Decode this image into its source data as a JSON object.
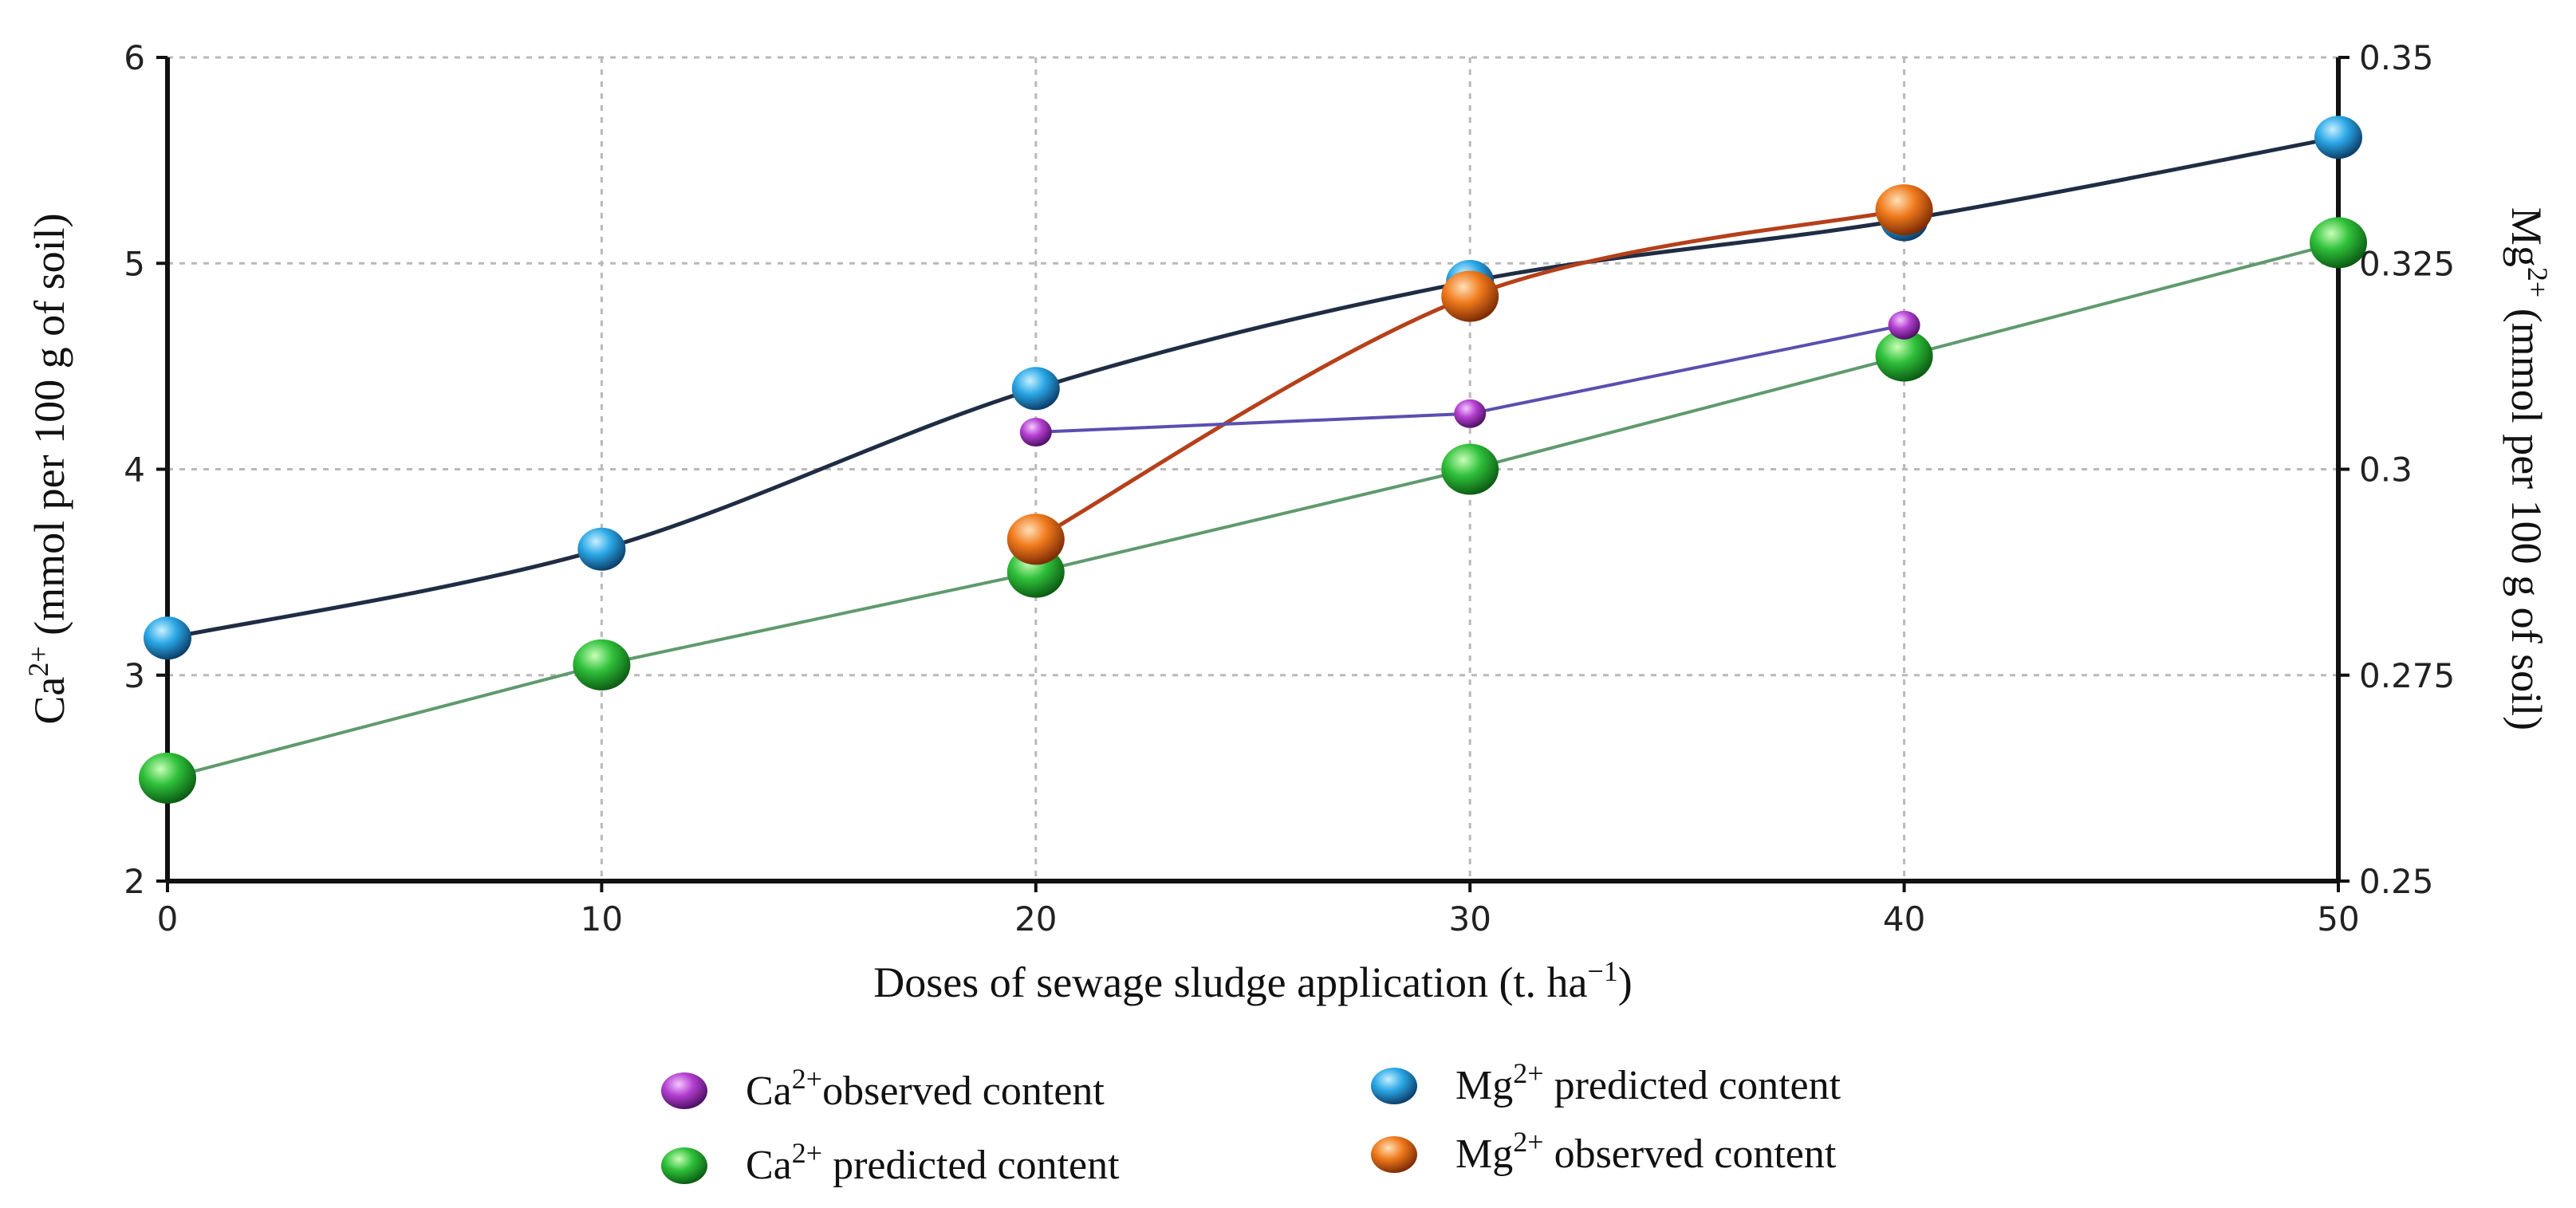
{
  "chart_data": {
    "type": "line",
    "x_axis": {
      "label": "Doses of sewage sludge application (t. ha",
      "label_sup": "−1",
      "label_close": ")",
      "range": [
        0,
        50
      ],
      "ticks": [
        "0",
        "10",
        "20",
        "30",
        "40",
        "50"
      ]
    },
    "y_left": {
      "label_prefix": "Ca",
      "label_sup": "2+",
      "label_suffix": " (mmol per 100 g of soil)",
      "range": [
        2,
        6
      ],
      "ticks": [
        "2",
        "3",
        "4",
        "5",
        "6"
      ]
    },
    "y_right": {
      "label_prefix": "Mg",
      "label_sup": "2+",
      "label_suffix": " (mmol per 100 g of soil)",
      "range": [
        0.25,
        0.35
      ],
      "ticks": [
        "0.25",
        "0.275",
        "0.3",
        "0.325",
        "0.35"
      ]
    },
    "grid": true,
    "series": [
      {
        "name": "Ca2+ observed content",
        "legend_prefix": "Ca",
        "legend_sup": "2+",
        "legend_suffix": "observed content",
        "axis": "left",
        "color": "#b43fd0",
        "line_color": "#5a4fb0",
        "curve": "straight",
        "x": [
          20,
          30,
          40
        ],
        "y": [
          4.18,
          4.27,
          4.7
        ]
      },
      {
        "name": "Ca2+ predicted content",
        "legend_prefix": "Ca",
        "legend_sup": "2+",
        "legend_suffix": " predicted content",
        "axis": "left",
        "color": "#2fc03a",
        "line_color": "#5f9a6d",
        "curve": "straight",
        "x": [
          0,
          10,
          20,
          30,
          40,
          50
        ],
        "y": [
          2.5,
          3.05,
          3.5,
          4.0,
          4.55,
          5.1
        ]
      },
      {
        "name": "Mg2+ predicted content",
        "legend_prefix": "Mg",
        "legend_sup": "2+",
        "legend_suffix": " predicted content",
        "axis": "right",
        "color": "#2aa7e6",
        "line_color": "#1f2d44",
        "curve": "smooth",
        "x": [
          0,
          10,
          20,
          30,
          40,
          50
        ],
        "y": [
          0.2795,
          0.2903,
          0.3098,
          0.3228,
          0.3303,
          0.3403
        ]
      },
      {
        "name": "Mg2+ observed content",
        "legend_prefix": "Mg",
        "legend_sup": "2+",
        "legend_suffix": " observed content",
        "axis": "right",
        "color": "#f07a1c",
        "line_color": "#b5401a",
        "curve": "smooth",
        "x": [
          20,
          30,
          40
        ],
        "y": [
          0.2915,
          0.321,
          0.3315
        ]
      }
    ],
    "legend_position": "bottom-center"
  }
}
